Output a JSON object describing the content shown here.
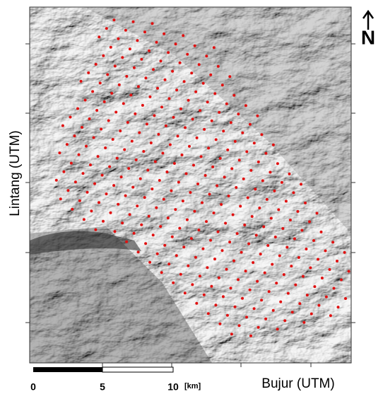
{
  "axes": {
    "x_label": "Bujur (UTM)",
    "y_label": "Lintang (UTM)"
  },
  "scale_bar": {
    "labels": [
      0,
      5,
      10
    ],
    "unit": "[km]"
  },
  "north_arrow": "N"
}
